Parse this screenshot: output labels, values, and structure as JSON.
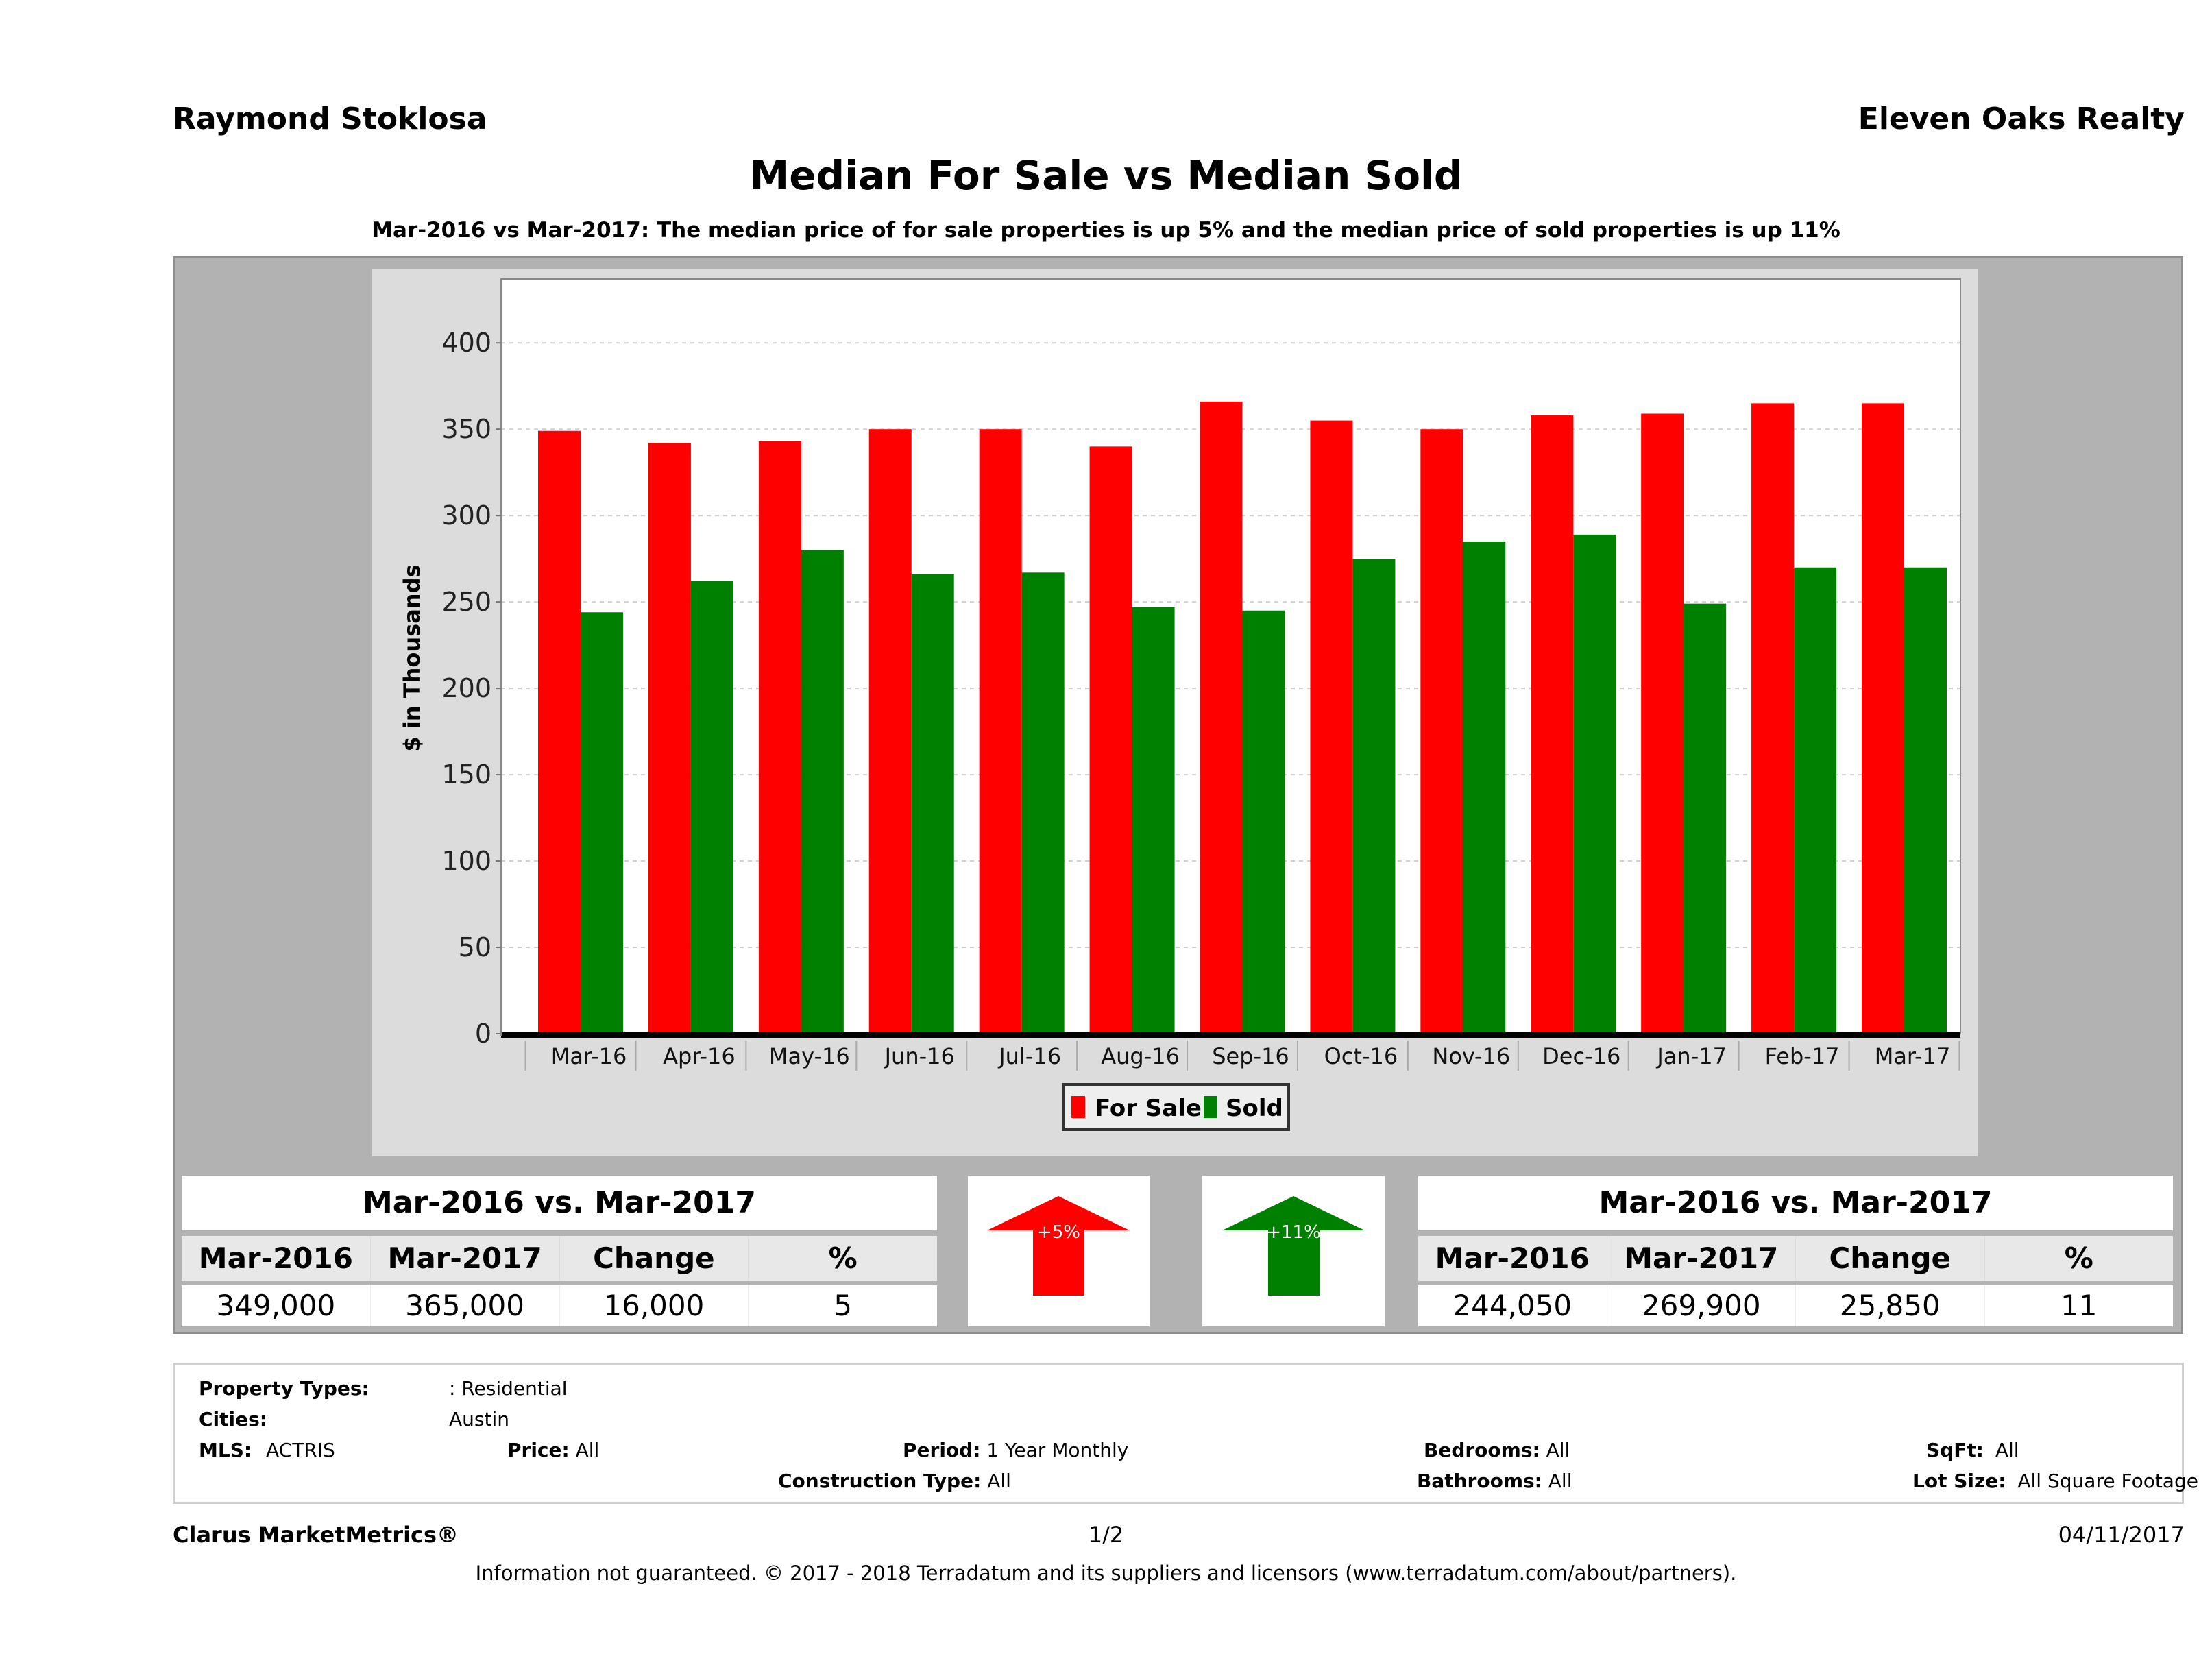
{
  "header": {
    "author": "Raymond Stoklosa",
    "company": "Eleven Oaks Realty",
    "title": "Median For Sale vs Median Sold",
    "subtitle": "Mar-2016 vs Mar-2017: The median price of for sale properties is up 5% and the median price of sold properties is up 11%"
  },
  "colors": {
    "for_sale": "#ff0000",
    "sold": "#008000",
    "outer_bg": "#b2b2b2",
    "panel_bg": "#dcdcdc"
  },
  "chart_data": {
    "type": "bar",
    "title": "Median For Sale vs Median Sold",
    "xlabel": "",
    "ylabel": "$ in Thousands",
    "ylim": [
      0,
      437
    ],
    "yticks": [
      0,
      50,
      100,
      150,
      200,
      250,
      300,
      350,
      400
    ],
    "grid": true,
    "legend_position": "bottom",
    "categories": [
      "Mar-16",
      "Apr-16",
      "May-16",
      "Jun-16",
      "Jul-16",
      "Aug-16",
      "Sep-16",
      "Oct-16",
      "Nov-16",
      "Dec-16",
      "Jan-17",
      "Feb-17",
      "Mar-17"
    ],
    "series": [
      {
        "name": "For Sale",
        "color": "#ff0000",
        "values": [
          349,
          342,
          343,
          350,
          350,
          340,
          366,
          355,
          350,
          358,
          359,
          365,
          365
        ]
      },
      {
        "name": "Sold",
        "color": "#008000",
        "values": [
          244,
          262,
          280,
          266,
          267,
          247,
          245,
          275,
          285,
          289,
          249,
          270,
          270
        ]
      }
    ]
  },
  "for_sale_table": {
    "title": "Mar-2016 vs. Mar-2017",
    "headers": [
      "Mar-2016",
      "Mar-2017",
      "Change",
      "%"
    ],
    "values": [
      "349,000",
      "365,000",
      "16,000",
      "5"
    ]
  },
  "sold_table": {
    "title": "Mar-2016 vs. Mar-2017",
    "headers": [
      "Mar-2016",
      "Mar-2017",
      "Change",
      "%"
    ],
    "values": [
      "244,050",
      "269,900",
      "25,850",
      "11"
    ]
  },
  "indicators": {
    "for_sale": {
      "label": "+5%",
      "direction": "up-arrow-icon",
      "color": "#ff0000"
    },
    "sold": {
      "label": "+11%",
      "direction": "up-arrow-icon",
      "color": "#008000"
    }
  },
  "filters": {
    "property_types_label": "Property Types:",
    "property_types_value": ": Residential",
    "cities_label": "Cities:",
    "cities_value": "Austin",
    "mls_label": "MLS:",
    "mls_value": "ACTRIS",
    "price_label": "Price:",
    "price_value": "All",
    "period_label": "Period:",
    "period_value": "1 Year Monthly",
    "construction_label": "Construction Type:",
    "construction_value": "All",
    "bedrooms_label": "Bedrooms:",
    "bedrooms_value": "All",
    "bathrooms_label": "Bathrooms:",
    "bathrooms_value": "All",
    "sqft_label": "SqFt:",
    "sqft_value": "All",
    "lotsize_label": "Lot Size:",
    "lotsize_value": "All Square Footage"
  },
  "footer": {
    "brand": "Clarus MarketMetrics®",
    "page": "1/2",
    "date": "04/11/2017",
    "disclaimer": "Information not guaranteed. © 2017 - 2018 Terradatum and its suppliers and licensors (www.terradatum.com/about/partners)."
  }
}
